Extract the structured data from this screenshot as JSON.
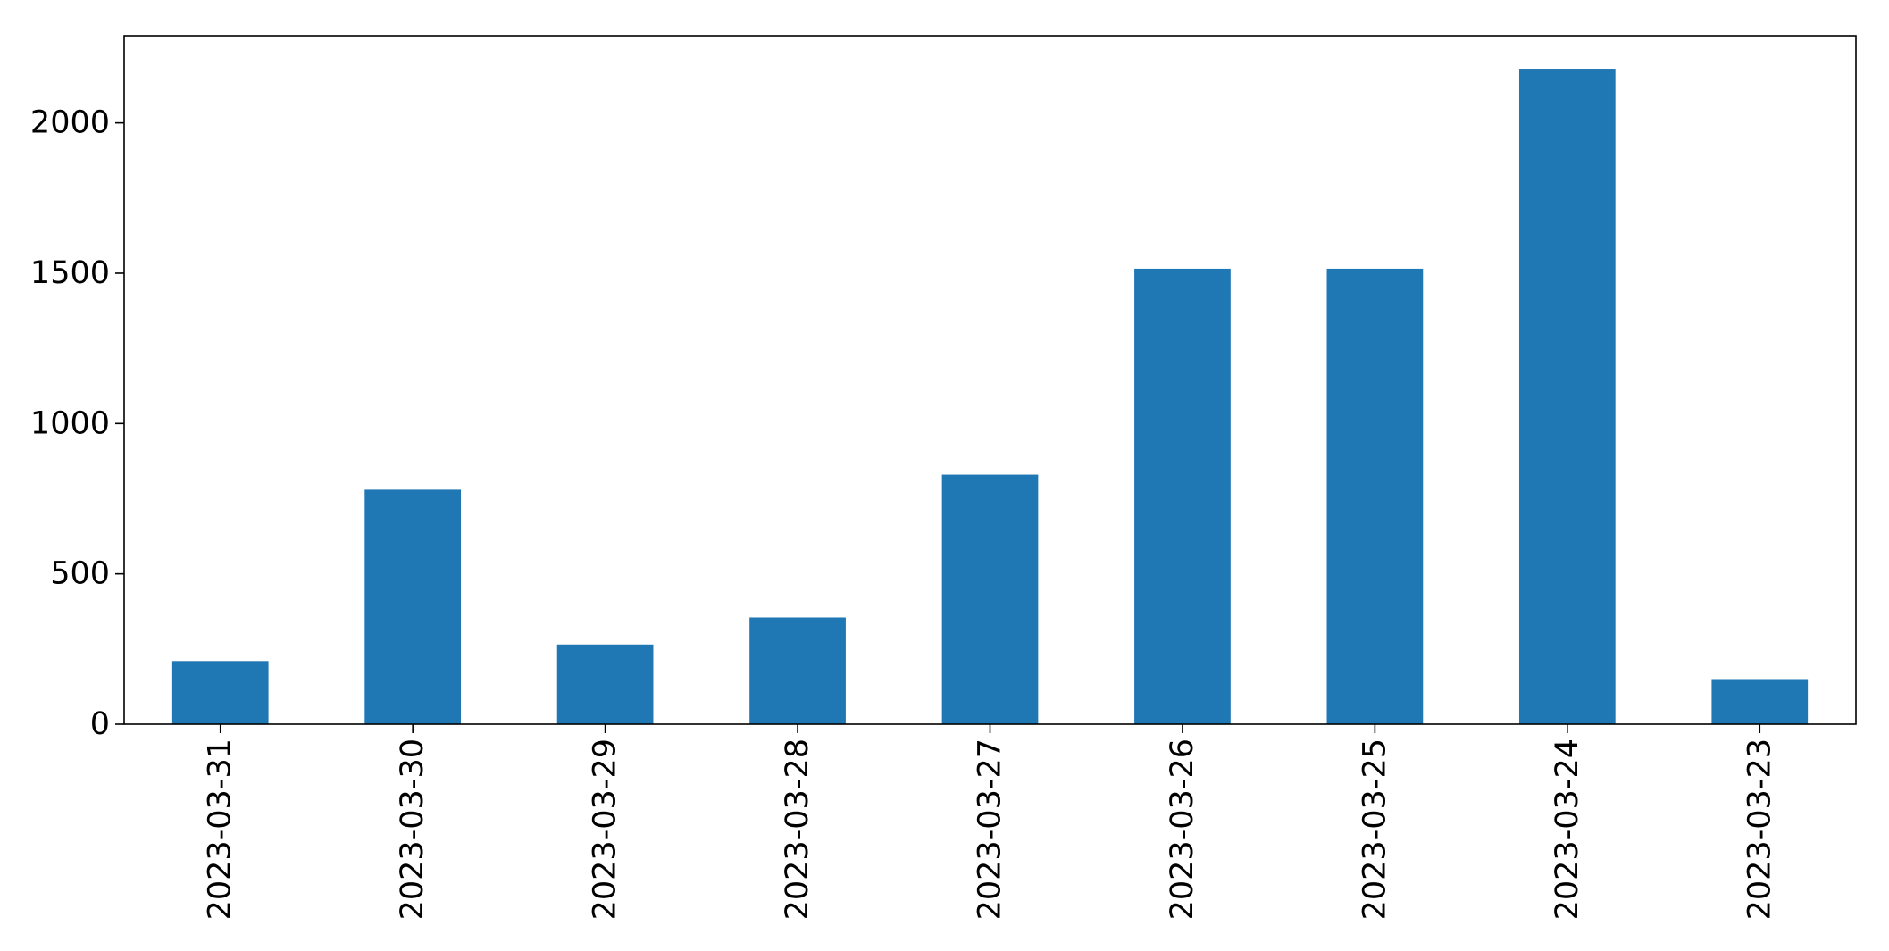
{
  "chart_data": {
    "type": "bar",
    "title": "",
    "xlabel": "",
    "ylabel": "",
    "categories": [
      "2023-03-31",
      "2023-03-30",
      "2023-03-29",
      "2023-03-28",
      "2023-03-27",
      "2023-03-26",
      "2023-03-25",
      "2023-03-24",
      "2023-03-23"
    ],
    "values": [
      210,
      780,
      265,
      355,
      830,
      1515,
      1515,
      2180,
      150
    ],
    "ylim": [
      0,
      2290
    ],
    "yticks": [
      0,
      500,
      1000,
      1500,
      2000
    ],
    "bar_color": "#1f77b4",
    "grid": false,
    "legend": "none"
  }
}
